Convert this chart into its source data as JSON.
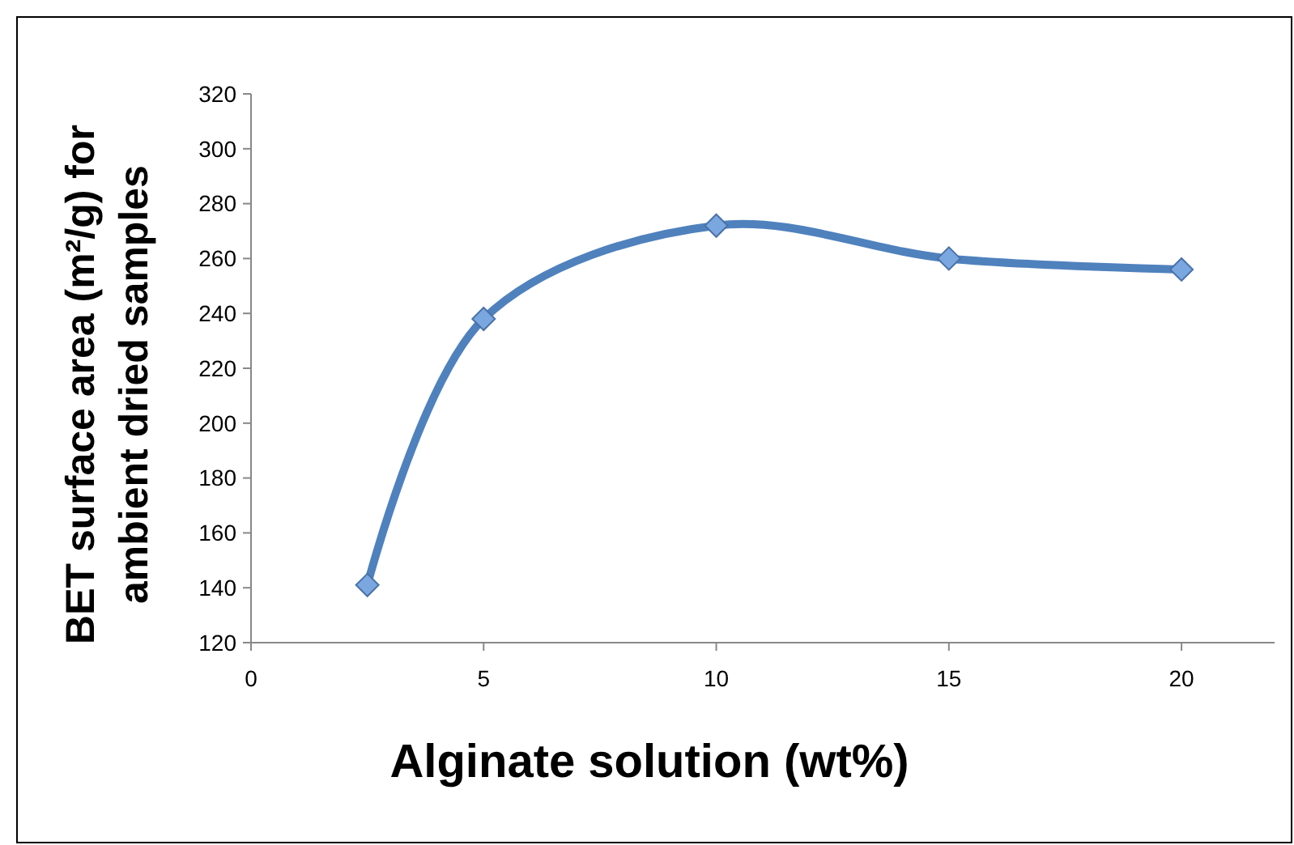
{
  "chart_data": {
    "type": "line",
    "xlabel": "Alginate solution (wt%)",
    "ylabel": "BET surface area (m²/g) for\nambient dried samples",
    "x": [
      2.5,
      5,
      10,
      15,
      20
    ],
    "series": [
      {
        "color": "#4f81bd",
        "values": [
          141,
          238,
          272,
          260,
          256
        ]
      }
    ],
    "xlim": [
      0,
      22
    ],
    "xticks": [
      0,
      5,
      10,
      15,
      20
    ],
    "ylim": [
      120,
      320
    ],
    "yticks": [
      120,
      140,
      160,
      180,
      200,
      220,
      240,
      260,
      280,
      300,
      320
    ],
    "grid": false,
    "marker": "diamond",
    "line_style": "solid"
  }
}
